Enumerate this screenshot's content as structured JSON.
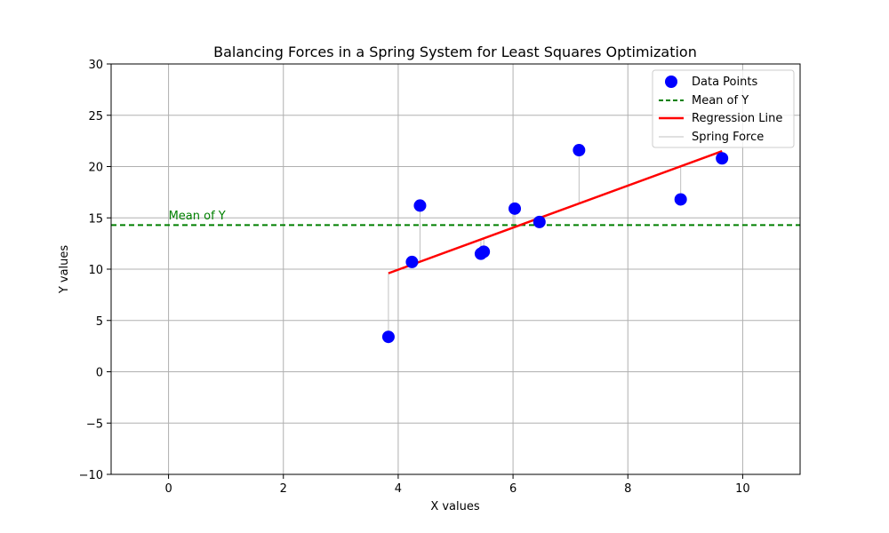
{
  "chart_data": {
    "type": "scatter",
    "title": "Balancing Forces in a Spring System for Least Squares Optimization",
    "xlabel": "X values",
    "ylabel": "Y values",
    "xlim": [
      -1,
      11
    ],
    "ylim": [
      -10,
      30
    ],
    "xticks": [
      0,
      2,
      4,
      6,
      8,
      10
    ],
    "yticks": [
      -10,
      -5,
      0,
      5,
      10,
      15,
      20,
      25,
      30
    ],
    "xtick_labels": [
      "0",
      "2",
      "4",
      "6",
      "8",
      "10"
    ],
    "ytick_labels": [
      "−10",
      "−5",
      "0",
      "5",
      "10",
      "15",
      "20",
      "25",
      "30"
    ],
    "grid": true,
    "legend_position": "top-right",
    "series": [
      {
        "name": "Data Points",
        "type": "scatter",
        "color": "#0000ff",
        "points": [
          {
            "x": 3.83,
            "y": 3.4
          },
          {
            "x": 4.24,
            "y": 10.7
          },
          {
            "x": 4.38,
            "y": 16.2
          },
          {
            "x": 5.44,
            "y": 11.5
          },
          {
            "x": 5.49,
            "y": 11.7
          },
          {
            "x": 6.03,
            "y": 15.9
          },
          {
            "x": 6.46,
            "y": 14.6
          },
          {
            "x": 7.15,
            "y": 21.6
          },
          {
            "x": 8.92,
            "y": 16.8
          },
          {
            "x": 9.64,
            "y": 20.8
          }
        ]
      },
      {
        "name": "Mean of Y",
        "type": "hline",
        "color": "#008000",
        "style": "dashed",
        "y": 14.3
      },
      {
        "name": "Regression Line",
        "type": "line",
        "color": "#ff0000",
        "points": [
          {
            "x": 3.83,
            "y": 9.6
          },
          {
            "x": 9.64,
            "y": 21.5
          }
        ]
      },
      {
        "name": "Spring Force",
        "type": "segments",
        "color": "#c0c0c0",
        "description_of_encoding": "vertical segment from each data point to the regression line"
      }
    ],
    "annotations": [
      {
        "text": "Mean of Y",
        "x": 0.0,
        "y": 15.3,
        "color": "#008000"
      }
    ]
  }
}
